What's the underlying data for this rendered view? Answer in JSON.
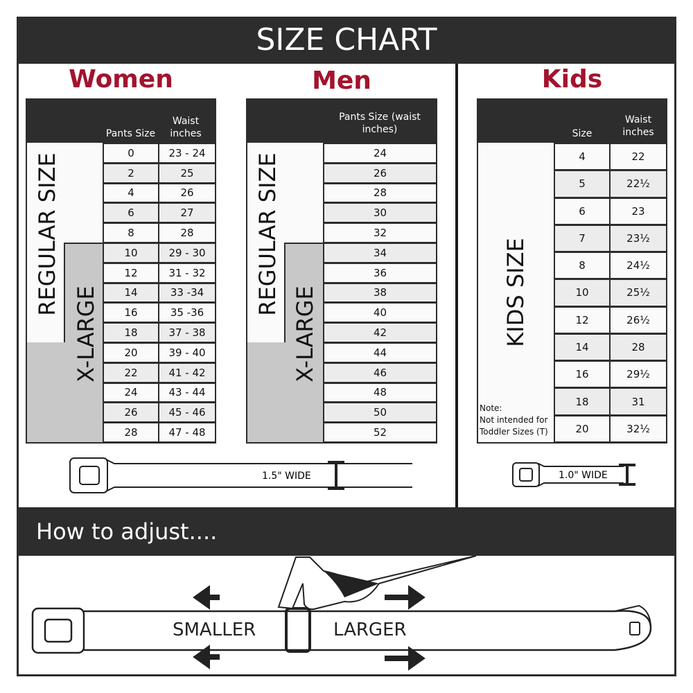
{
  "header": {
    "title": "SIZE CHART"
  },
  "women": {
    "title": "Women",
    "col_pants": "Pants Size",
    "col_waist": "Waist inches",
    "regular_label": "REGULAR SIZE",
    "xlarge_label": "X-LARGE",
    "rows": [
      [
        "0",
        "23 - 24"
      ],
      [
        "2",
        "25"
      ],
      [
        "4",
        "26"
      ],
      [
        "6",
        "27"
      ],
      [
        "8",
        "28"
      ],
      [
        "10",
        "29 - 30"
      ],
      [
        "12",
        "31 - 32"
      ],
      [
        "14",
        "33 -34"
      ],
      [
        "16",
        "35 -36"
      ],
      [
        "18",
        "37 - 38"
      ],
      [
        "20",
        "39 - 40"
      ],
      [
        "22",
        "41 - 42"
      ],
      [
        "24",
        "43 - 44"
      ],
      [
        "26",
        "45 - 46"
      ],
      [
        "28",
        "47 - 48"
      ]
    ],
    "belt_width": "1.5\" WIDE"
  },
  "men": {
    "title": "Men",
    "col_pants": "Pants Size (waist inches)",
    "regular_label": "REGULAR SIZE",
    "xlarge_label": "X-LARGE",
    "rows": [
      "24",
      "26",
      "28",
      "30",
      "32",
      "34",
      "36",
      "38",
      "40",
      "42",
      "44",
      "46",
      "48",
      "50",
      "52"
    ]
  },
  "kids": {
    "title": "Kids",
    "col_size": "Size",
    "col_waist": "Waist inches",
    "label": "KIDS SIZE",
    "note_title": "Note:",
    "note_text": "Not intended for Toddler Sizes (T)",
    "rows": [
      [
        "4",
        "22"
      ],
      [
        "5",
        "22½"
      ],
      [
        "6",
        "23"
      ],
      [
        "7",
        "23½"
      ],
      [
        "8",
        "24½"
      ],
      [
        "10",
        "25½"
      ],
      [
        "12",
        "26½"
      ],
      [
        "14",
        "28"
      ],
      [
        "16",
        "29½"
      ],
      [
        "18",
        "31"
      ],
      [
        "20",
        "32½"
      ]
    ],
    "belt_width": "1.0\" WIDE"
  },
  "adjust": {
    "title": "How to adjust....",
    "smaller": "SMALLER",
    "larger": "LARGER"
  },
  "colors": {
    "accent": "#a3132e",
    "dark": "#2d2d2d",
    "xlarge_gray": "#c8c8c8"
  }
}
